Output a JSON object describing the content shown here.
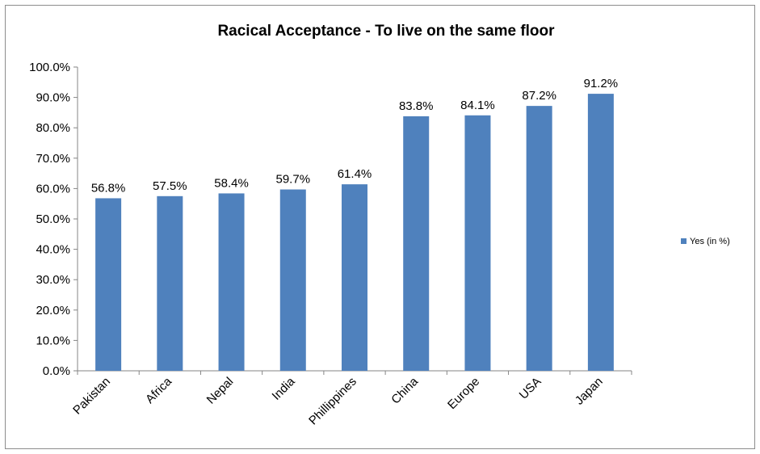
{
  "chart_data": {
    "type": "bar",
    "title": "Racical Acceptance - To live on the same floor",
    "xlabel": "",
    "ylabel": "",
    "categories": [
      "Pakistan",
      "Africa",
      "Nepal",
      "India",
      "Phillippines",
      "China",
      "Europe",
      "USA",
      "Japan"
    ],
    "series": [
      {
        "name": "Yes (in %)",
        "values": [
          56.8,
          57.5,
          58.4,
          59.7,
          61.4,
          83.8,
          84.1,
          87.2,
          91.2
        ],
        "data_labels": [
          "56.8%",
          "57.5%",
          "58.4%",
          "59.7%",
          "61.4%",
          "83.8%",
          "84.1%",
          "87.2%",
          "91.2%"
        ]
      }
    ],
    "ylim": [
      0,
      100
    ],
    "yticks": [
      "0.0%",
      "10.0%",
      "20.0%",
      "30.0%",
      "40.0%",
      "50.0%",
      "60.0%",
      "70.0%",
      "80.0%",
      "90.0%",
      "100.0%"
    ],
    "grid": false,
    "legend": "right",
    "colors": {
      "bar": "#4f81bd",
      "axis": "#868686"
    }
  }
}
